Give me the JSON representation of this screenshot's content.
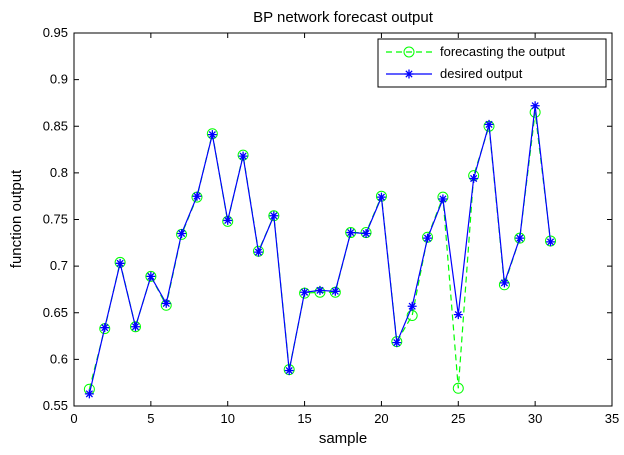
{
  "chart_data": {
    "type": "line",
    "title": "BP network forecast output",
    "xlabel": "sample",
    "ylabel": "function output",
    "xlim": [
      0,
      35
    ],
    "ylim": [
      0.55,
      0.95
    ],
    "xticks": [
      "0",
      "5",
      "10",
      "15",
      "20",
      "25",
      "30",
      "35"
    ],
    "yticks": [
      "0.55",
      "0.6",
      "0.65",
      "0.7",
      "0.75",
      "0.8",
      "0.85",
      "0.9",
      "0.95"
    ],
    "grid": false,
    "legend_position": "top-right",
    "x": [
      1,
      2,
      3,
      4,
      5,
      6,
      7,
      8,
      9,
      10,
      11,
      12,
      13,
      14,
      15,
      16,
      17,
      18,
      19,
      20,
      21,
      22,
      23,
      24,
      25,
      26,
      27,
      28,
      29,
      30,
      31
    ],
    "series": [
      {
        "name": "forecasting the output",
        "color": "#00ff00",
        "line_style": "dashed",
        "marker": "circle",
        "values": [
          0.568,
          0.633,
          0.704,
          0.635,
          0.689,
          0.658,
          0.734,
          0.774,
          0.842,
          0.748,
          0.819,
          0.716,
          0.754,
          0.589,
          0.671,
          0.672,
          0.672,
          0.736,
          0.736,
          0.775,
          0.619,
          0.647,
          0.731,
          0.774,
          0.569,
          0.797,
          0.85,
          0.68,
          0.73,
          0.865,
          0.727
        ]
      },
      {
        "name": "desired output",
        "color": "#0000ff",
        "line_style": "solid",
        "marker": "star",
        "values": [
          0.563,
          0.634,
          0.703,
          0.635,
          0.689,
          0.66,
          0.735,
          0.775,
          0.841,
          0.749,
          0.818,
          0.715,
          0.754,
          0.588,
          0.672,
          0.674,
          0.673,
          0.736,
          0.735,
          0.774,
          0.618,
          0.657,
          0.73,
          0.772,
          0.648,
          0.794,
          0.852,
          0.682,
          0.73,
          0.872,
          0.726
        ]
      }
    ]
  }
}
